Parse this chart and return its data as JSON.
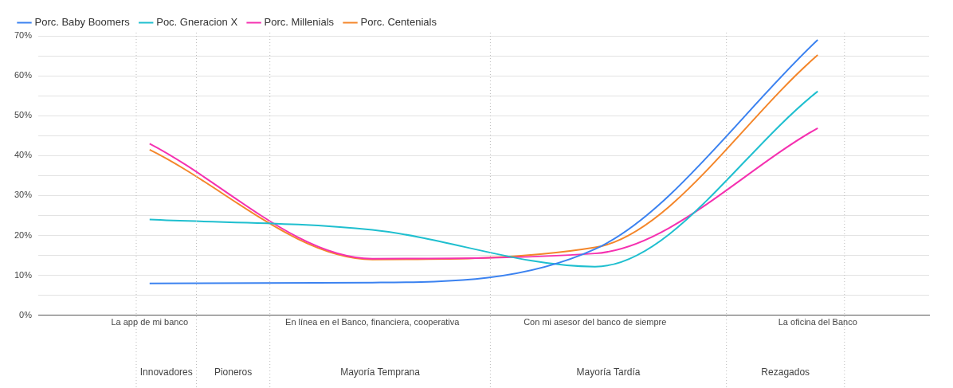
{
  "chart_data": {
    "type": "line",
    "categories": [
      "La app de mi banco",
      "En línea en el Banco, financiera, cooperativa",
      "Con mi asesor del banco de siempre",
      "La oficina del Banco"
    ],
    "ylim": [
      0,
      70
    ],
    "yticks": [
      {
        "value": 0,
        "label": "0%"
      },
      {
        "value": 5,
        "label": null
      },
      {
        "value": 10,
        "label": "10%"
      },
      {
        "value": 15,
        "label": null
      },
      {
        "value": 20,
        "label": "20%"
      },
      {
        "value": 25,
        "label": null
      },
      {
        "value": 30,
        "label": "30%"
      },
      {
        "value": 35,
        "label": null
      },
      {
        "value": 40,
        "label": "40%"
      },
      {
        "value": 45,
        "label": null
      },
      {
        "value": 50,
        "label": "50%"
      },
      {
        "value": 55,
        "label": null
      },
      {
        "value": 60,
        "label": "60%"
      },
      {
        "value": 65,
        "label": null
      },
      {
        "value": 70,
        "label": "70%"
      }
    ],
    "series": [
      {
        "name": "Porc. Baby Boomers",
        "color": "#3b82f0",
        "values": [
          8,
          8.2,
          16.6,
          69
        ]
      },
      {
        "name": "Poc. Gneracion X",
        "color": "#1fbfcf",
        "values": [
          24,
          21.4,
          12.2,
          56.1
        ]
      },
      {
        "name": "Porc. Millenials",
        "color": "#f531b0",
        "values": [
          43,
          14.2,
          15.5,
          46.9
        ]
      },
      {
        "name": "Porc. Centenials",
        "color": "#f4862a",
        "values": [
          41.5,
          14,
          17,
          65.2
        ]
      }
    ],
    "annotations": [
      "Innovadores",
      "Pioneros",
      "Mayoría Temprana",
      "Mayoría Tardía",
      "Rezagados"
    ],
    "grid": "y",
    "legend": "top left",
    "marker": "none"
  }
}
